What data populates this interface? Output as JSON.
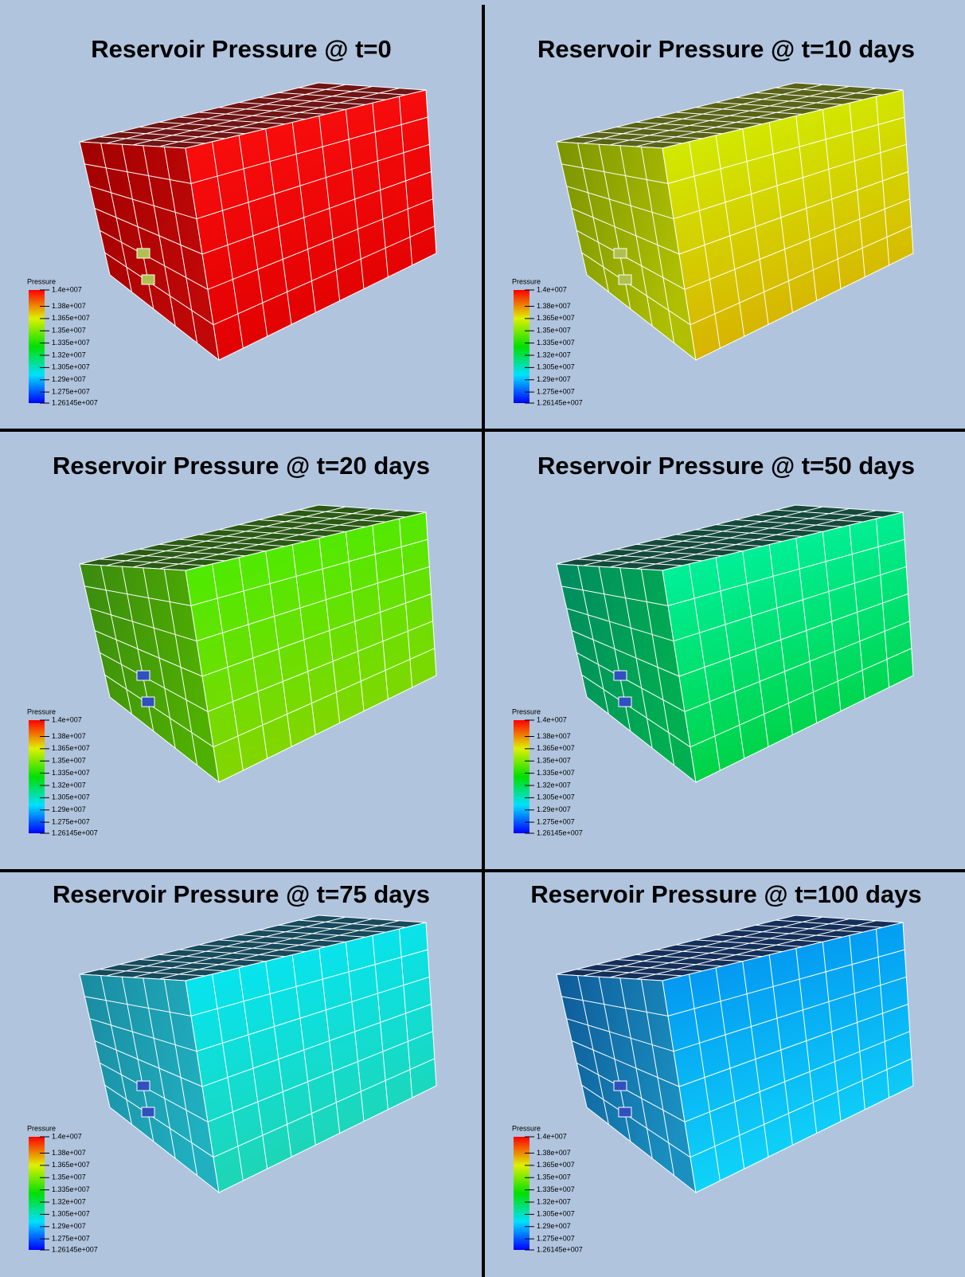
{
  "panels": [
    {
      "title": "Reservoir Pressure @ t=0"
    },
    {
      "title": "Reservoir Pressure @ t=10 days"
    },
    {
      "title": "Reservoir Pressure @ t=20 days"
    },
    {
      "title": "Reservoir Pressure @ t=50 days"
    },
    {
      "title": "Reservoir Pressure @ t=75 days"
    },
    {
      "title": "Reservoir Pressure @ t=100 days"
    }
  ],
  "legend": {
    "title": "Pressure",
    "labels": [
      "1.4e+007",
      "1.38e+007",
      "1.365e+007",
      "1.35e+007",
      "1.335e+007",
      "1.32e+007",
      "1.305e+007",
      "1.29e+007",
      "1.275e+007",
      "1.26145e+007"
    ]
  }
}
